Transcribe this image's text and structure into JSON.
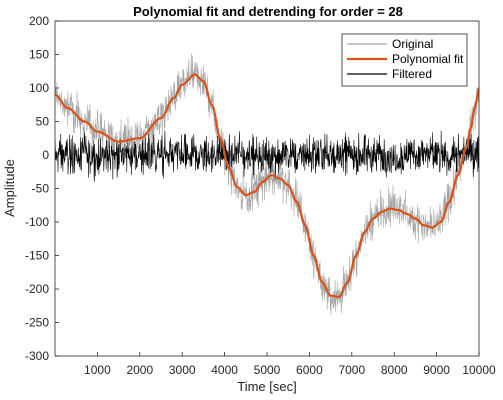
{
  "chart_data": {
    "type": "line",
    "title": "Polynomial fit and detrending for order = 28",
    "xlabel": "Time [sec]",
    "ylabel": "Amplitude",
    "xlim": [
      0,
      10000
    ],
    "ylim": [
      -300,
      200
    ],
    "x_ticks": [
      1000,
      2000,
      3000,
      4000,
      5000,
      6000,
      7000,
      8000,
      9000,
      10000
    ],
    "y_ticks": [
      200,
      150,
      100,
      50,
      0,
      -50,
      -100,
      -150,
      -200,
      -250,
      -300
    ],
    "grid": false,
    "legend_position": "top-right",
    "series": [
      {
        "name": "Original",
        "color": "#a6a6a6",
        "noise_amplitude": 30
      },
      {
        "name": "Polynomial fit",
        "color": "#d95319",
        "x": [
          0,
          300,
          700,
          1000,
          1500,
          2000,
          2500,
          2800,
          3000,
          3300,
          3500,
          3700,
          3900,
          4100,
          4300,
          4500,
          4700,
          4900,
          5100,
          5300,
          5500,
          5700,
          5900,
          6100,
          6300,
          6500,
          6700,
          6900,
          7100,
          7300,
          7500,
          7700,
          7900,
          8100,
          8300,
          8500,
          8700,
          8900,
          9100,
          9300,
          9500,
          9700,
          9800,
          9900,
          10000
        ],
        "y": [
          90,
          70,
          50,
          35,
          20,
          25,
          55,
          85,
          105,
          120,
          110,
          75,
          25,
          -20,
          -48,
          -60,
          -55,
          -40,
          -30,
          -35,
          -45,
          -70,
          -105,
          -150,
          -190,
          -210,
          -212,
          -190,
          -150,
          -115,
          -95,
          -85,
          -80,
          -82,
          -88,
          -95,
          -105,
          -108,
          -100,
          -70,
          -30,
          10,
          40,
          70,
          100
        ]
      },
      {
        "name": "Filtered",
        "color": "#000000",
        "noise_amplitude": 30
      }
    ]
  }
}
